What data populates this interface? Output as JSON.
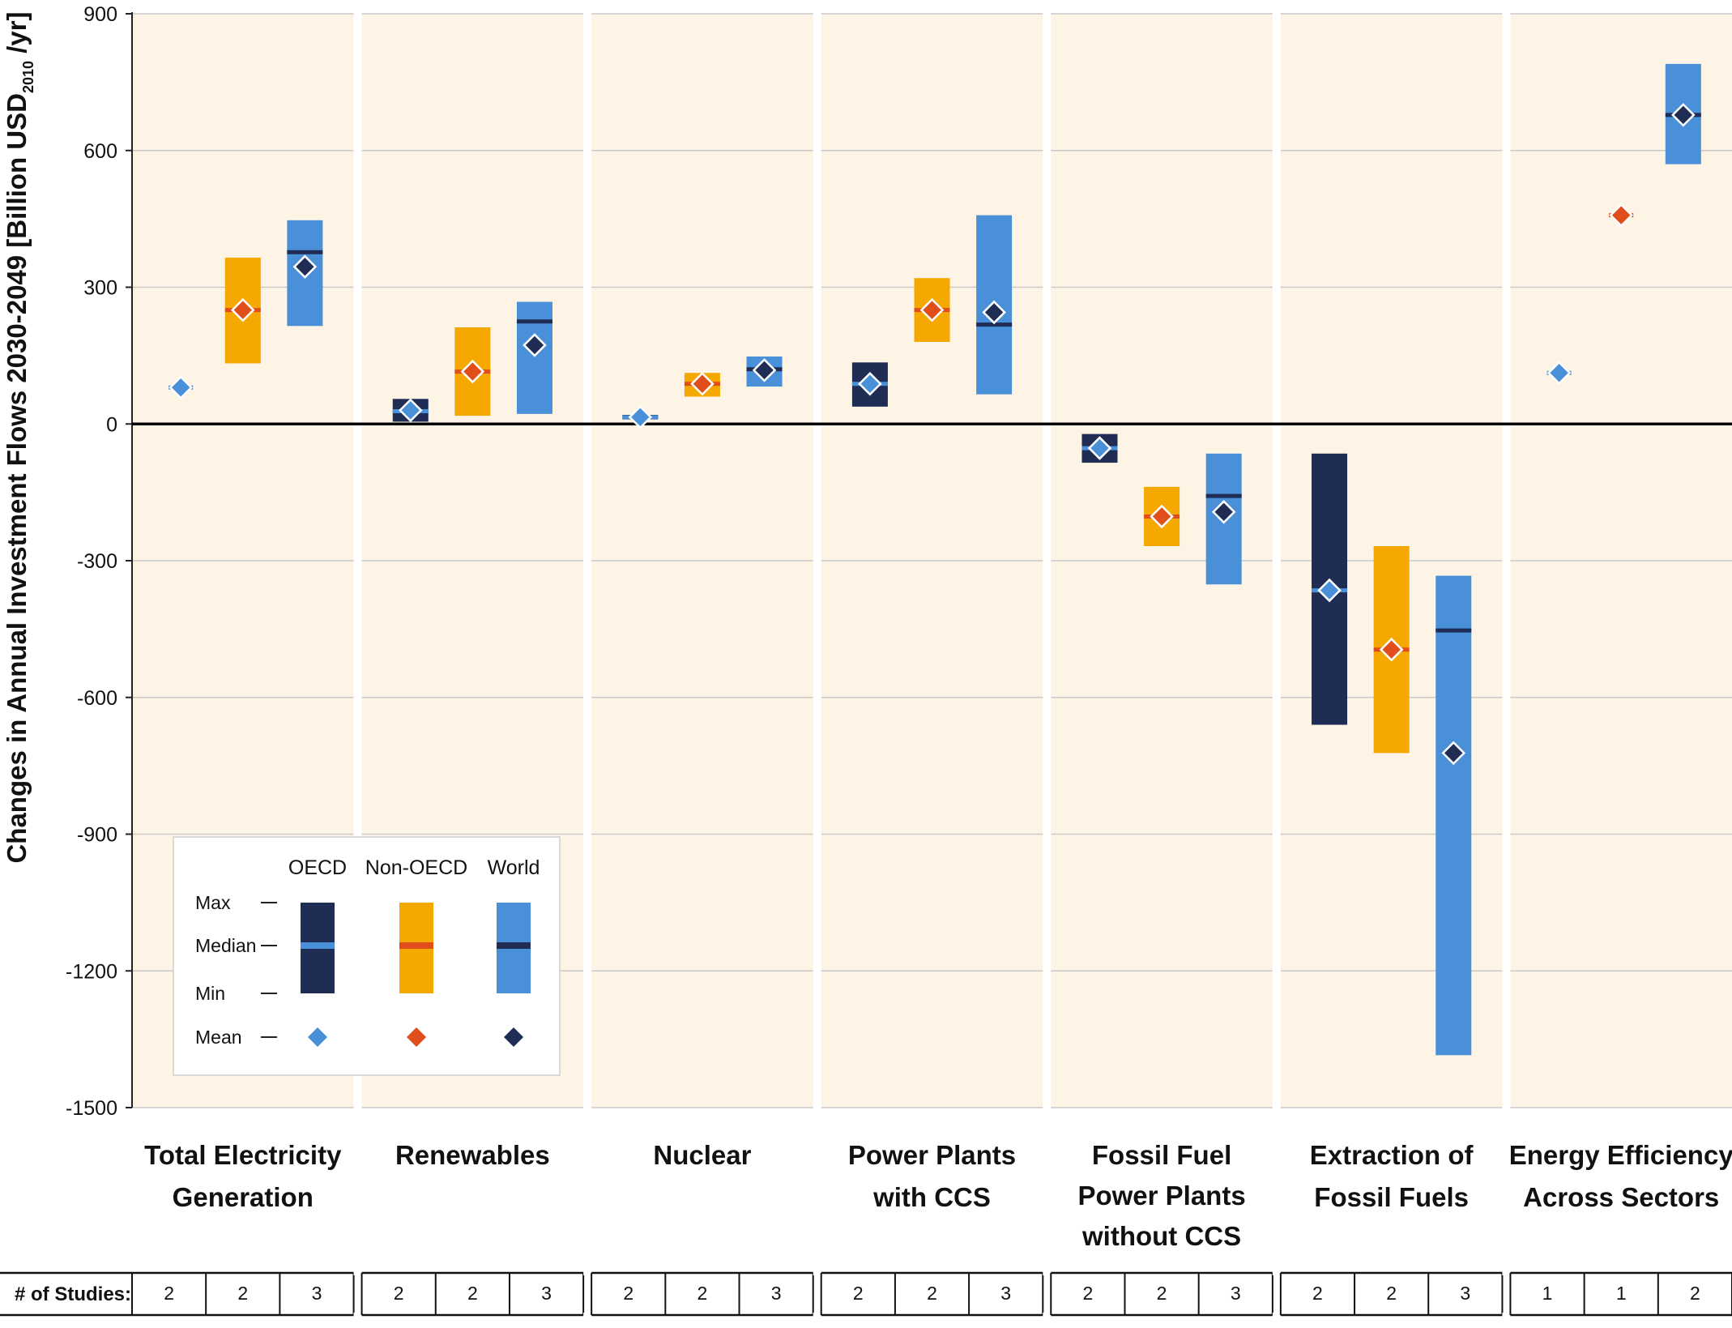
{
  "chart_data": {
    "type": "bar",
    "title": "",
    "ylabel": "Changes in Annual Investment Flows 2030-2049 [Billion USD",
    "ylabel_subscript": "2010",
    "ylabel_suffix": "/yr]",
    "ylim": [
      -1500,
      900
    ],
    "yticks": [
      900,
      600,
      300,
      0,
      -300,
      -600,
      -900,
      -1200,
      -1500
    ],
    "grid": true,
    "legend_position": "bottom-left",
    "categories": [
      {
        "lines": [
          "Total Electricity",
          "Generation"
        ]
      },
      {
        "lines": [
          "Renewables"
        ]
      },
      {
        "lines": [
          "Nuclear"
        ]
      },
      {
        "lines": [
          "Power Plants",
          "with CCS"
        ]
      },
      {
        "lines": [
          "Fossil Fuel",
          "Power Plants",
          "without CCS"
        ]
      },
      {
        "lines": [
          "Extraction of",
          "Fossil Fuels"
        ]
      },
      {
        "lines": [
          "Energy Efficiency",
          "Across Sectors"
        ]
      }
    ],
    "series": [
      {
        "name": "OECD",
        "color": "#1f2d55",
        "median_color": "#4a90d9",
        "mean_color": "#4a90d9",
        "min": [
          80,
          5,
          10,
          38,
          -85,
          -660,
          112
        ],
        "max": [
          80,
          55,
          20,
          135,
          -22,
          -65,
          112
        ],
        "median": [
          80,
          28,
          15,
          88,
          -53,
          -365,
          112
        ],
        "mean": [
          80,
          30,
          15,
          88,
          -53,
          -365,
          112
        ],
        "studies": [
          2,
          2,
          2,
          2,
          2,
          2,
          1
        ]
      },
      {
        "name": "Non-OECD",
        "color": "#f5a800",
        "median_color": "#e04e1b",
        "mean_color": "#e04e1b",
        "min": [
          133,
          18,
          60,
          180,
          -268,
          -722,
          458
        ],
        "max": [
          365,
          212,
          112,
          320,
          -138,
          -268,
          458
        ],
        "median": [
          250,
          115,
          88,
          250,
          -203,
          -495,
          458
        ],
        "mean": [
          250,
          115,
          88,
          250,
          -203,
          -495,
          458
        ],
        "studies": [
          2,
          2,
          2,
          2,
          2,
          2,
          1
        ]
      },
      {
        "name": "World",
        "color": "#4a90d9",
        "median_color": "#1f2d55",
        "mean_color": "#1f2d55",
        "min": [
          215,
          22,
          82,
          65,
          -352,
          -1385,
          570
        ],
        "max": [
          447,
          268,
          148,
          458,
          -65,
          -333,
          790
        ],
        "median": [
          377,
          225,
          120,
          218,
          -158,
          -453,
          678
        ],
        "mean": [
          345,
          173,
          118,
          245,
          -193,
          -722,
          678
        ],
        "studies": [
          3,
          3,
          3,
          3,
          3,
          3,
          2
        ]
      }
    ],
    "legend": {
      "row_labels": [
        "Max",
        "Median",
        "Min",
        "Mean"
      ],
      "column_labels": [
        "OECD",
        "Non-OECD",
        "World"
      ]
    },
    "studies_label": "# of Studies:"
  },
  "colors": {
    "panel_background": "#fdf4e6",
    "gridline": "#c9c9c9",
    "separator": "#ffffff"
  }
}
